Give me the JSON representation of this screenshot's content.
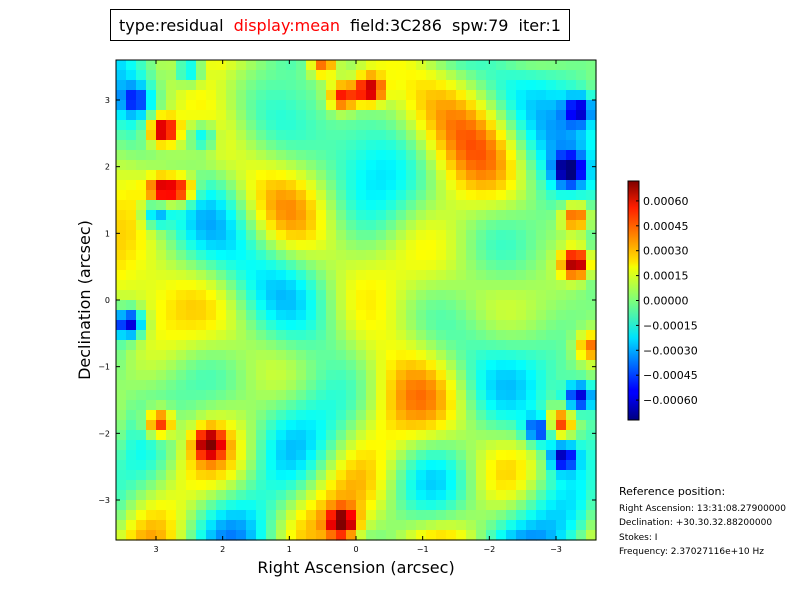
{
  "title": {
    "type": "type:residual",
    "display": "display:mean",
    "field": "field:3C286",
    "spw": "spw:79",
    "iter": "iter:1",
    "display_color": "#ff0000"
  },
  "chart_data": {
    "type": "heatmap",
    "xlabel": "Right Ascension (arcsec)",
    "ylabel": "Declination (arcsec)",
    "x_ticks": [
      "3",
      "2",
      "1",
      "0",
      "−1",
      "−2",
      "−3"
    ],
    "x_tick_values": [
      3,
      2,
      1,
      0,
      -1,
      -2,
      -3
    ],
    "y_ticks": [
      "3",
      "2",
      "1",
      "0",
      "−1",
      "−2",
      "−3"
    ],
    "y_tick_values": [
      3,
      2,
      1,
      0,
      -1,
      -2,
      -3
    ],
    "xlim": [
      3.6,
      -3.6
    ],
    "ylim": [
      -3.6,
      3.6
    ],
    "colormap": "jet",
    "colorbar": {
      "range": [
        -0.00072,
        0.00072
      ],
      "ticks": [
        "0.00060",
        "0.00045",
        "0.00030",
        "0.00015",
        "0.00000",
        "−0.00015",
        "−0.00030",
        "−0.00045",
        "−0.00060"
      ],
      "tick_values": [
        0.0006,
        0.00045,
        0.0003,
        0.00015,
        0,
        -0.00015,
        -0.0003,
        -0.00045,
        -0.0006
      ]
    },
    "hotspots": [
      {
        "ra": 2.9,
        "dec": 2.55,
        "value": 0.00068
      },
      {
        "ra": 2.9,
        "dec": 1.65,
        "value": 0.00058
      },
      {
        "ra": 2.6,
        "dec": 1.65,
        "value": 0.00052
      },
      {
        "ra": -3.3,
        "dec": 0.55,
        "value": 0.00068
      },
      {
        "ra": -3.3,
        "dec": 1.25,
        "value": 0.0005
      },
      {
        "ra": 0.2,
        "dec": 3.05,
        "value": 0.00052
      },
      {
        "ra": -0.2,
        "dec": 3.15,
        "value": 0.00062
      },
      {
        "ra": 2.95,
        "dec": -1.85,
        "value": 0.00058
      },
      {
        "ra": 2.2,
        "dec": -2.15,
        "value": 0.00055
      },
      {
        "ra": 0.2,
        "dec": -3.35,
        "value": 0.00062
      },
      {
        "ra": -3.05,
        "dec": -1.85,
        "value": 0.0005
      },
      {
        "ra": 0.5,
        "dec": 3.55,
        "value": 0.00045
      },
      {
        "ra": -3.5,
        "dec": -0.7,
        "value": 0.00035
      },
      {
        "ra": 3.4,
        "dec": -0.35,
        "value": -0.00068
      },
      {
        "ra": -3.2,
        "dec": 1.95,
        "value": -0.00065
      },
      {
        "ra": -3.35,
        "dec": -1.45,
        "value": -0.00062
      },
      {
        "ra": -2.75,
        "dec": -1.95,
        "value": -0.00055
      },
      {
        "ra": -3.1,
        "dec": -2.35,
        "value": -0.0006
      },
      {
        "ra": -3.35,
        "dec": 2.85,
        "value": -0.0005
      },
      {
        "ra": 2.3,
        "dec": 2.45,
        "value": -0.00035
      },
      {
        "ra": 2.5,
        "dec": 3.45,
        "value": -0.0004
      },
      {
        "ra": 3.0,
        "dec": 1.3,
        "value": -0.0004
      },
      {
        "ra": 3.3,
        "dec": 3.0,
        "value": -0.00035
      }
    ]
  },
  "reference": {
    "header": "Reference position:",
    "ra": "Right Ascension: 13:31:08.27900000",
    "dec": "Declination: +30.30.32.88200000",
    "stokes": "Stokes: I",
    "freq": "Frequency: 2.37027116e+10 Hz"
  }
}
